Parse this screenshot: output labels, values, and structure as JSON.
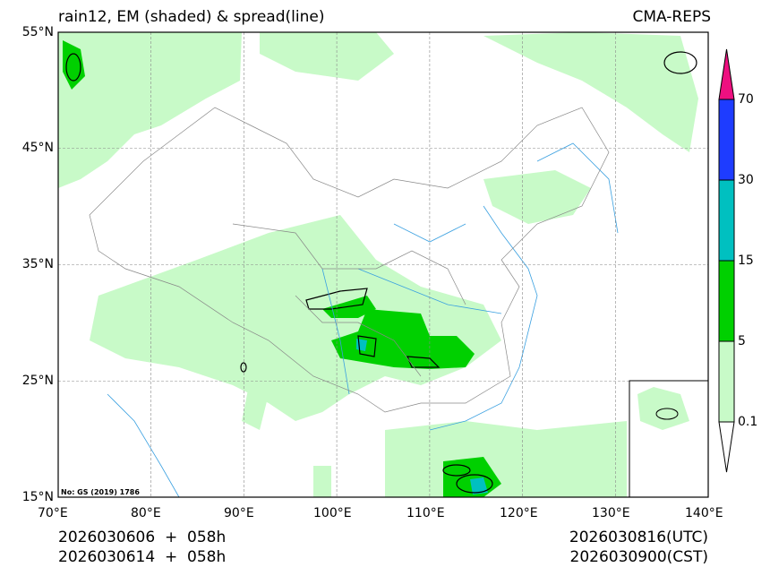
{
  "header": {
    "title_left": "rain12, EM (shaded) & spread(line)",
    "title_right": "CMA-REPS"
  },
  "map": {
    "lon_ticks": [
      "70°E",
      "80°E",
      "90°E",
      "100°E",
      "110°E",
      "120°E",
      "130°E",
      "140°E"
    ],
    "lat_ticks": [
      "55°N",
      "45°N",
      "35°N",
      "25°N",
      "15°N"
    ],
    "map_note": "No: GS (2019) 1786",
    "colors": {
      "light_green": "#c8fac8",
      "green": "#00d000",
      "cyan": "#00c0c0",
      "blue": "#1e3cff",
      "magenta": "#ee1080",
      "river": "#3aa0e0",
      "border": "#888888"
    }
  },
  "colorbar": {
    "levels": [
      "0.1",
      "5",
      "15",
      "30",
      "70"
    ],
    "colors": [
      "#c8fac8",
      "#00d000",
      "#00c0c0",
      "#1e3cff"
    ],
    "over_color": "#ee1080",
    "under_color": "#ffffff"
  },
  "footer": {
    "init_utc": "2026030606  +  058h",
    "init_cst": "2026030614  +  058h",
    "valid_utc": "2026030816(UTC)",
    "valid_cst": "2026030900(CST)"
  }
}
